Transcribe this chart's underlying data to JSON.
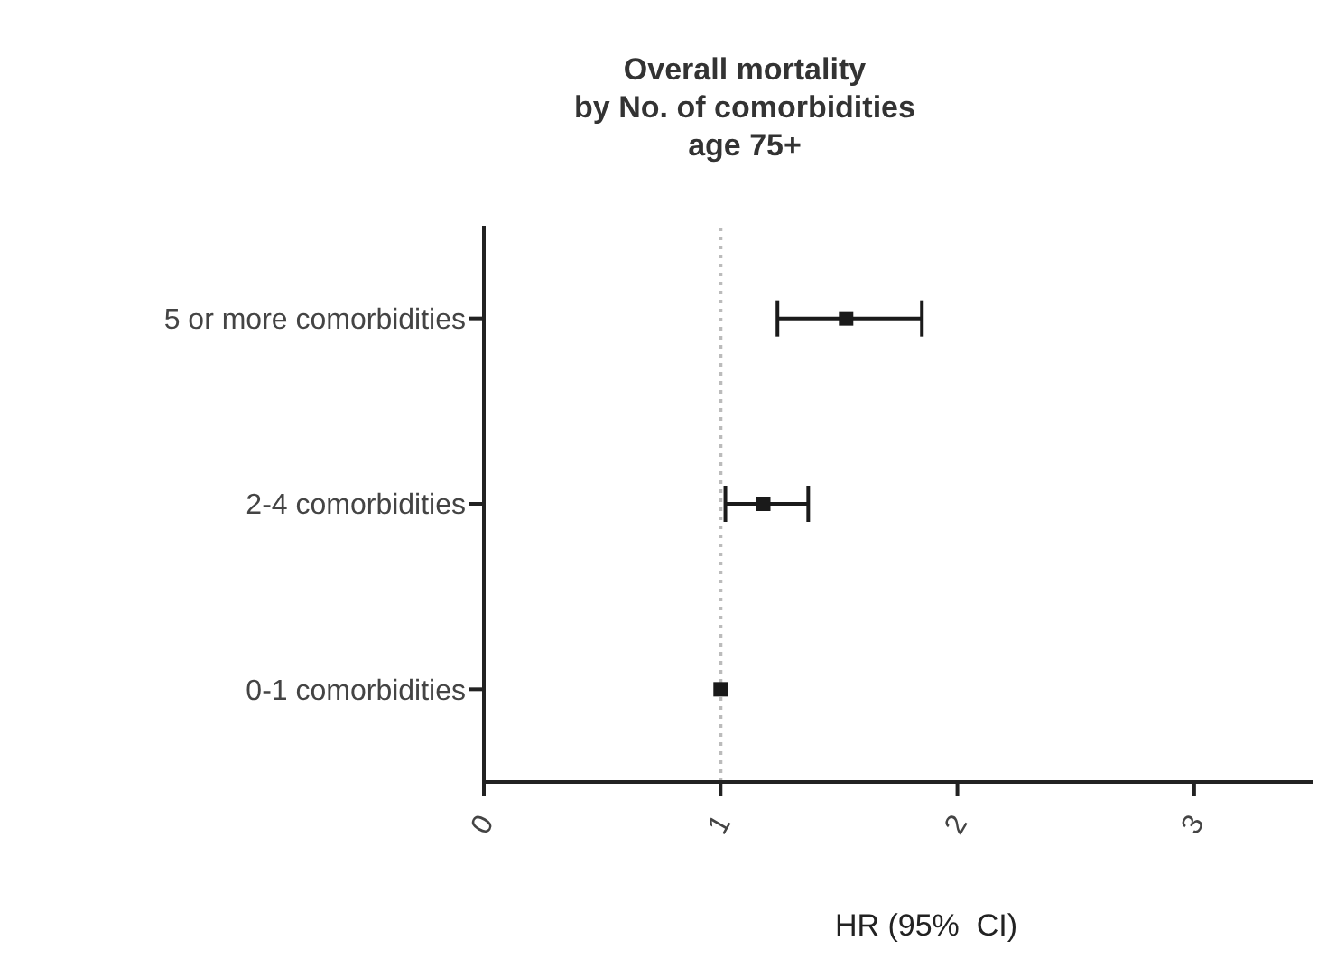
{
  "chart_data": {
    "type": "scatter",
    "orientation": "horizontal",
    "title": "Overall mortality\nby No. of comorbidities\nage 75+",
    "xlabel": "HR (95%  CI)",
    "categories": [
      "5 or more comorbidities",
      "2-4 comorbidities",
      "0-1 comorbidities"
    ],
    "series": [
      {
        "color": "#1a1a1a",
        "values": [
          1.53,
          1.18,
          1.0
        ],
        "errors": [
          [
            1.24,
            1.85
          ],
          [
            1.02,
            1.37
          ],
          null
        ]
      }
    ],
    "xlim": [
      0,
      3.5
    ],
    "xticks": [
      0,
      1,
      2,
      3
    ],
    "marker": "square",
    "grid": false,
    "legend": false,
    "ref_lines": [
      {
        "axis": "x",
        "value": 1,
        "color": "#bbbbbb",
        "line_style": "dotted"
      }
    ]
  }
}
